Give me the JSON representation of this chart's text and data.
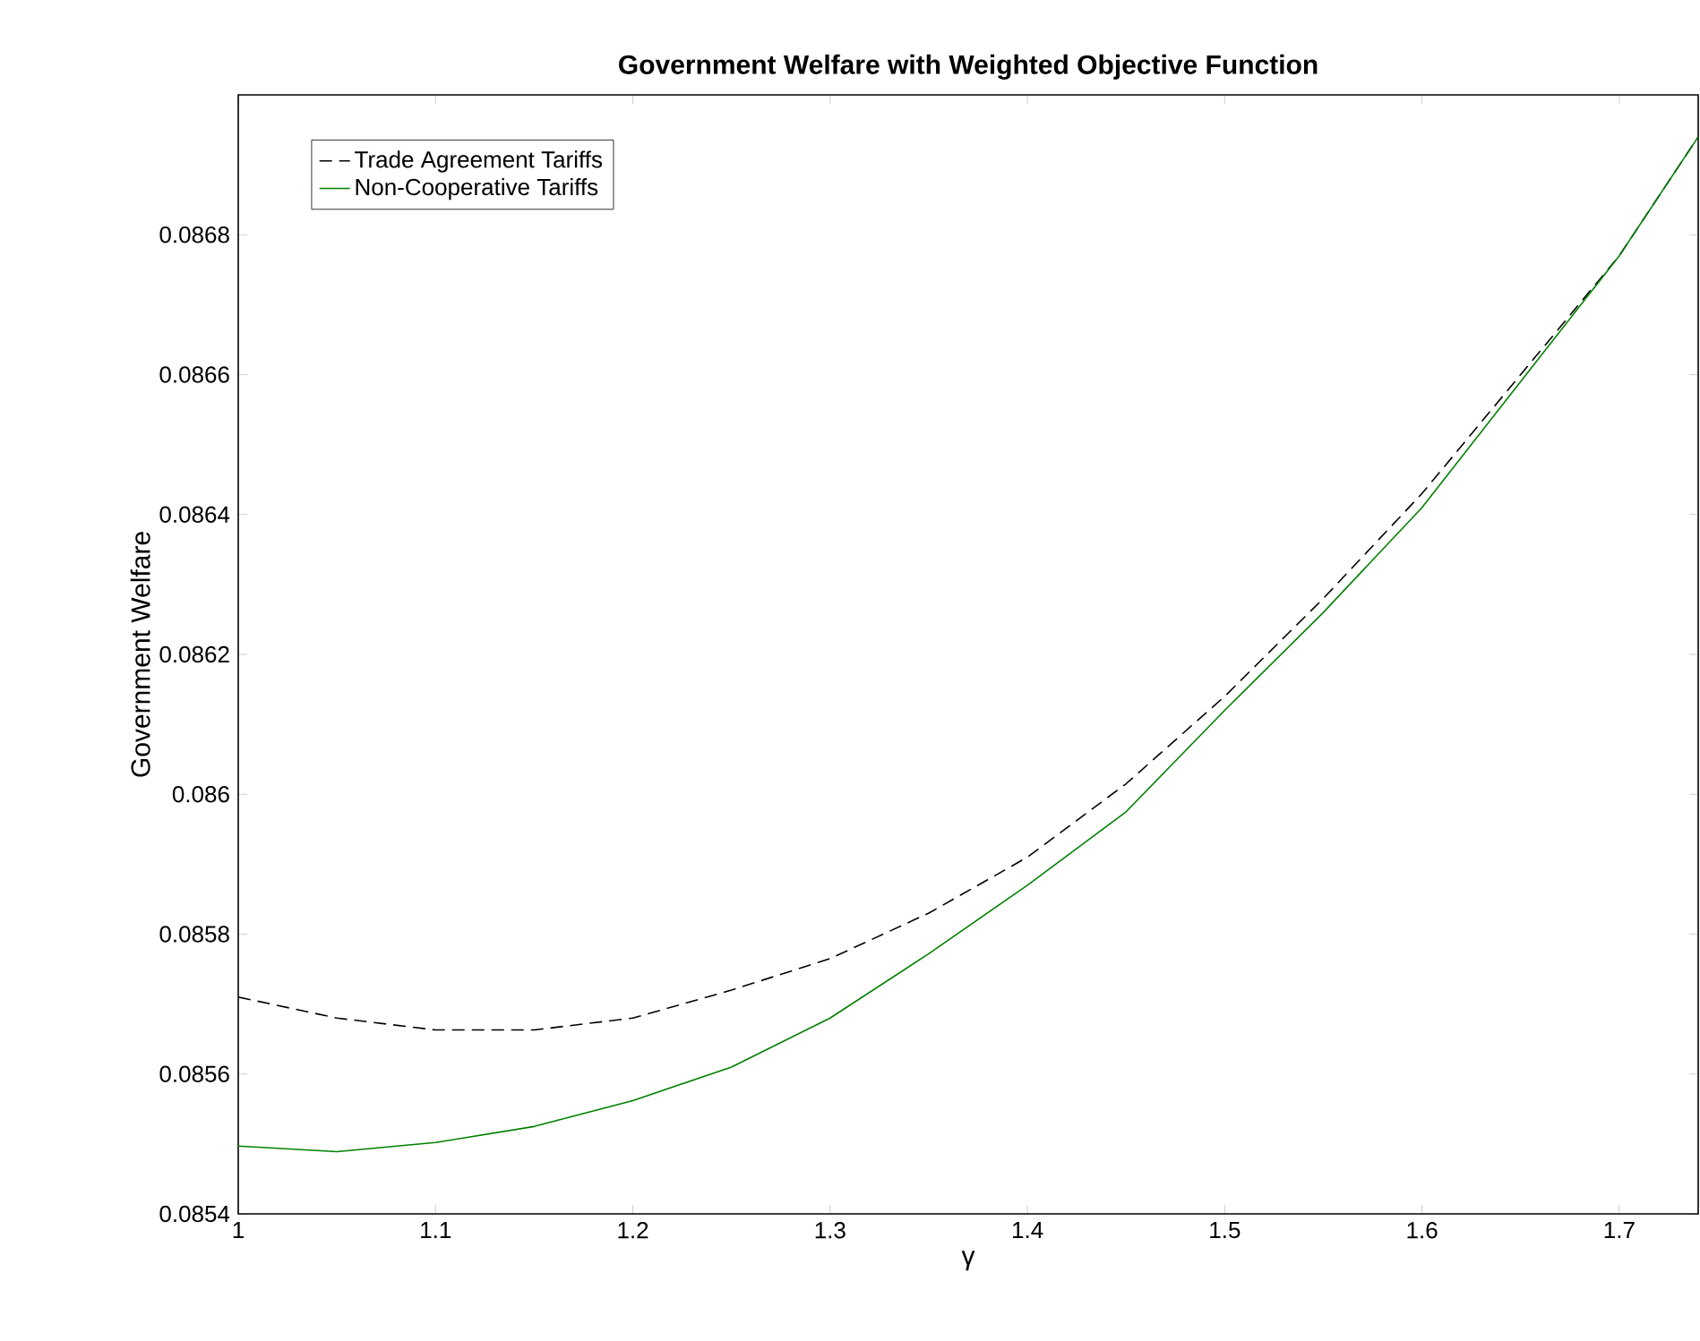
{
  "chart_data": {
    "type": "line",
    "title": "Government Welfare with Weighted Objective Function",
    "xlabel": "γ",
    "ylabel": "Government Welfare",
    "x": [
      1.0,
      1.05,
      1.1,
      1.15,
      1.2,
      1.25,
      1.3,
      1.35,
      1.4,
      1.45,
      1.5,
      1.55,
      1.6,
      1.65,
      1.7,
      1.74
    ],
    "series": [
      {
        "name": "Trade Agreement Tariffs",
        "color": "#000000",
        "line_style": "dashed",
        "values": [
          0.08571,
          0.08568,
          0.085663,
          0.085663,
          0.08568,
          0.08572,
          0.085765,
          0.08583,
          0.08591,
          0.086015,
          0.08614,
          0.08628,
          0.08643,
          0.0866,
          0.08677,
          0.08694
        ]
      },
      {
        "name": "Non-Cooperative Tariffs",
        "color": "#008000",
        "line_style": "solid",
        "values": [
          0.085497,
          0.085489,
          0.085502,
          0.085525,
          0.085562,
          0.08561,
          0.08568,
          0.085772,
          0.08587,
          0.085975,
          0.08612,
          0.08626,
          0.08641,
          0.08659,
          0.08677,
          0.08694
        ]
      }
    ],
    "xlim": [
      1,
      1.74
    ],
    "xticks": [
      1,
      1.1,
      1.2,
      1.3,
      1.4,
      1.5,
      1.6,
      1.7
    ],
    "ylim": [
      0.0854,
      0.087
    ],
    "yticks": [
      0.0854,
      0.0856,
      0.0858,
      0.086,
      0.0862,
      0.0864,
      0.0866,
      0.0868
    ],
    "legend": "top left"
  }
}
